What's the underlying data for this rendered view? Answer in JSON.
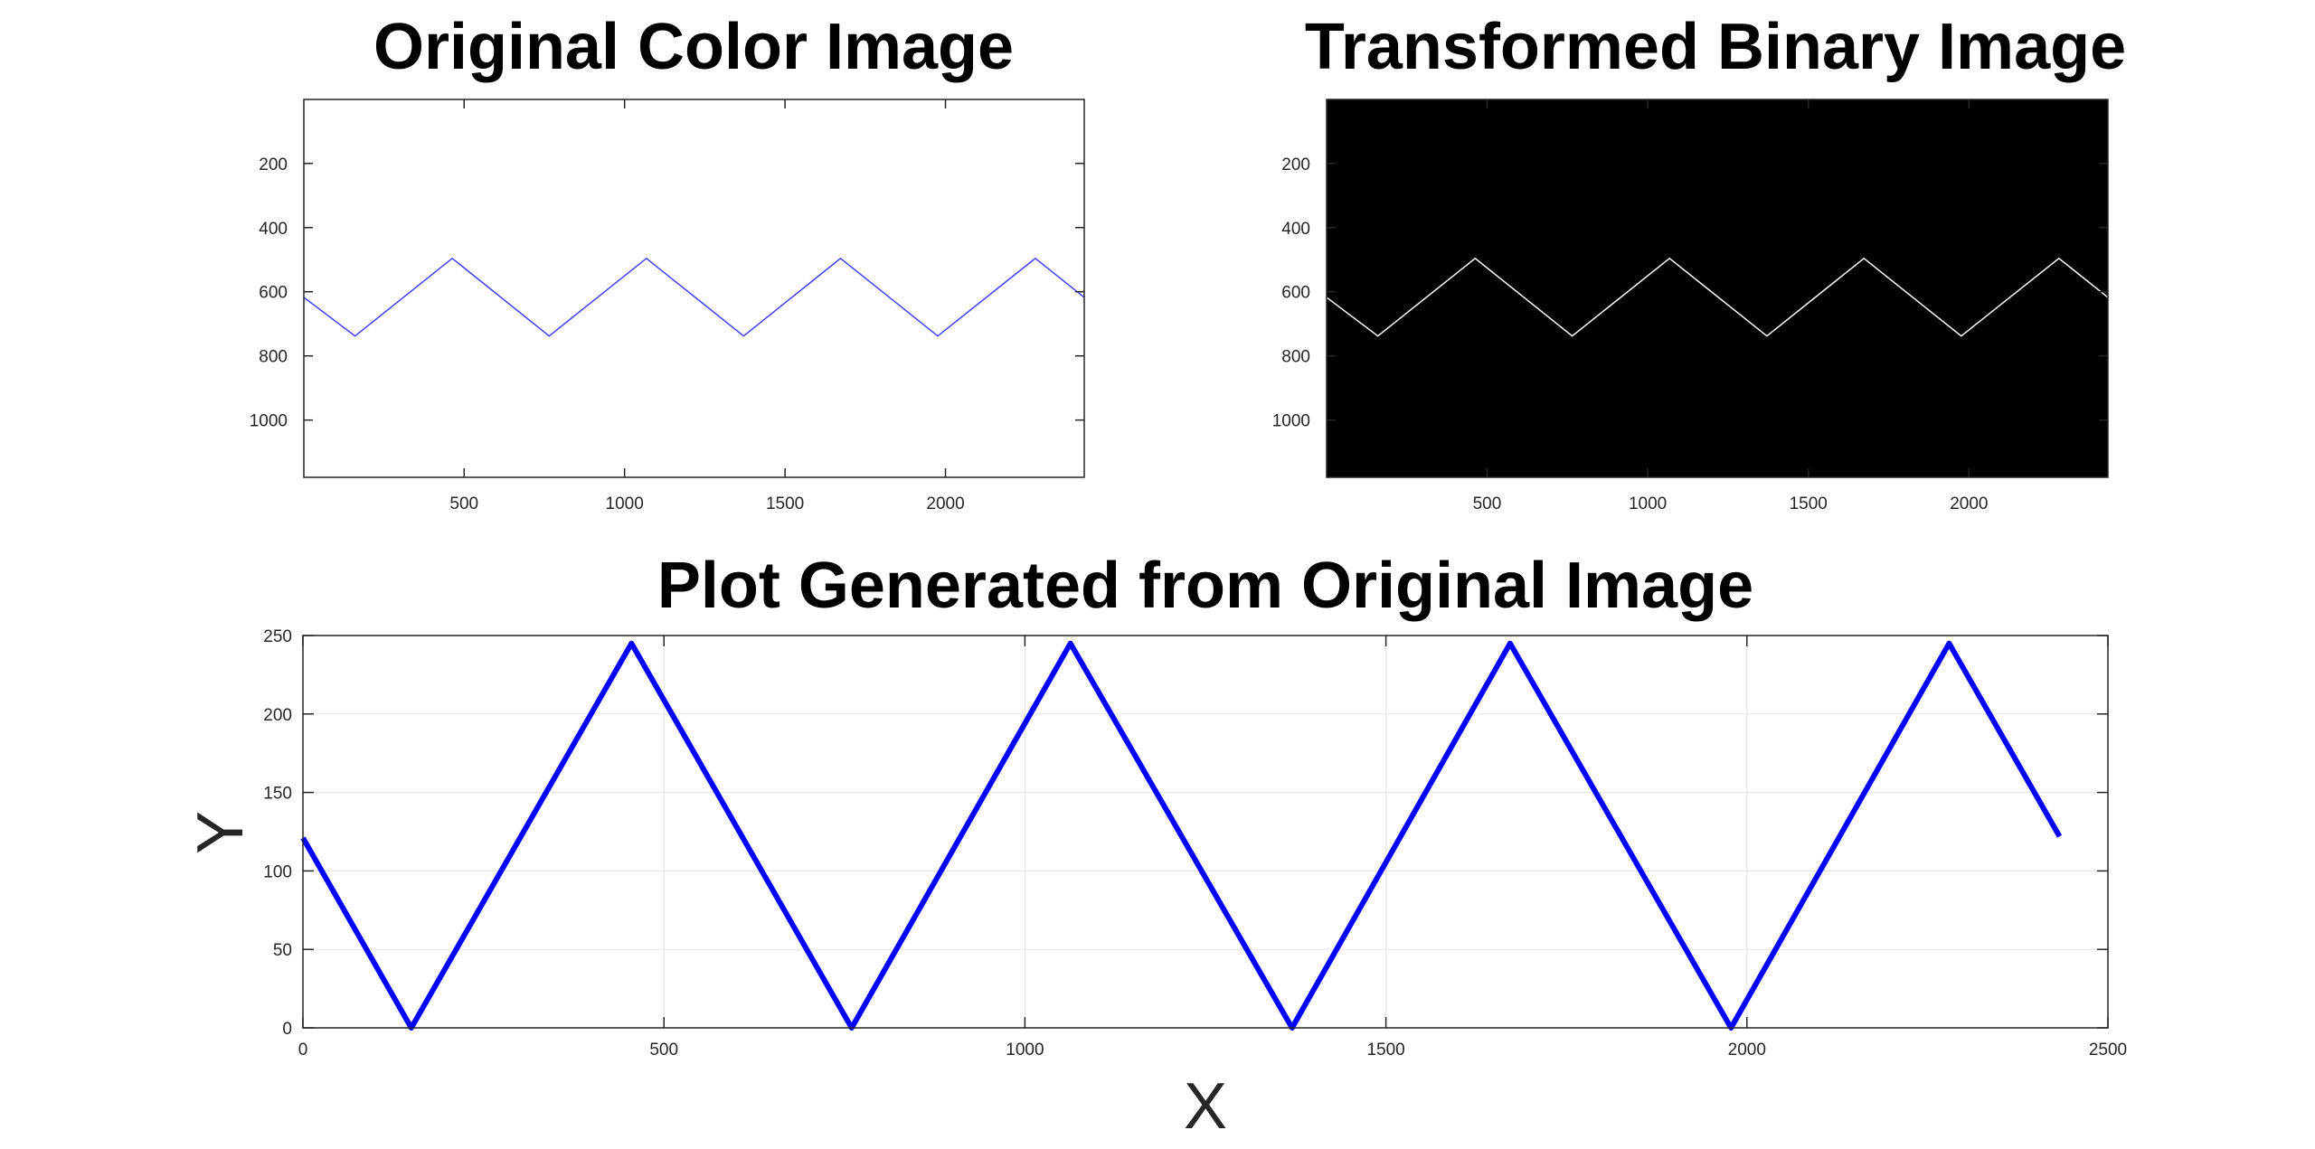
{
  "figure": {
    "background": "#ffffff",
    "axis_color": "#262626",
    "grid_color": "#e6e6e6"
  },
  "chart_data": [
    {
      "type": "image",
      "title": "Original Color Image",
      "background": "#ffffff",
      "line_color": "#3f3fff",
      "x_ticks": [
        500,
        1000,
        1500,
        2000
      ],
      "y_ticks": [
        200,
        400,
        600,
        800,
        1000
      ],
      "xlim": [
        0.5,
        2432.5
      ],
      "ylim": [
        0.5,
        1178.5
      ],
      "y_reversed": true,
      "series": [
        {
          "x": [
            0,
            160,
            463,
            765,
            1068,
            1371,
            1673,
            1976,
            2280,
            2432
          ],
          "y": [
            617,
            738,
            496,
            738,
            496,
            738,
            496,
            738,
            496,
            617
          ]
        }
      ]
    },
    {
      "type": "image",
      "title": "Transformed Binary Image",
      "background": "#000000",
      "line_color": "#ffffff",
      "x_ticks": [
        500,
        1000,
        1500,
        2000
      ],
      "y_ticks": [
        200,
        400,
        600,
        800,
        1000
      ],
      "xlim": [
        0.5,
        2432.5
      ],
      "ylim": [
        0.5,
        1178.5
      ],
      "y_reversed": true,
      "series": [
        {
          "x": [
            0,
            160,
            463,
            765,
            1068,
            1371,
            1673,
            1976,
            2280,
            2432
          ],
          "y": [
            617,
            738,
            496,
            738,
            496,
            738,
            496,
            738,
            496,
            617
          ]
        }
      ]
    },
    {
      "type": "line",
      "title": "Plot Generated from Original Image",
      "xlabel": "X",
      "ylabel": "Y",
      "xlim": [
        0,
        2500
      ],
      "ylim": [
        0,
        250
      ],
      "x_ticks": [
        0,
        500,
        1000,
        1500,
        2000,
        2500
      ],
      "y_ticks": [
        0,
        50,
        100,
        150,
        200,
        250
      ],
      "grid": true,
      "line_color": "#0000ff",
      "series": [
        {
          "x": [
            0,
            150,
            455,
            760,
            1063,
            1370,
            1672,
            1978,
            2280,
            2433
          ],
          "y": [
            121,
            0,
            245,
            0,
            245,
            0,
            245,
            0,
            245,
            122
          ]
        }
      ]
    }
  ]
}
